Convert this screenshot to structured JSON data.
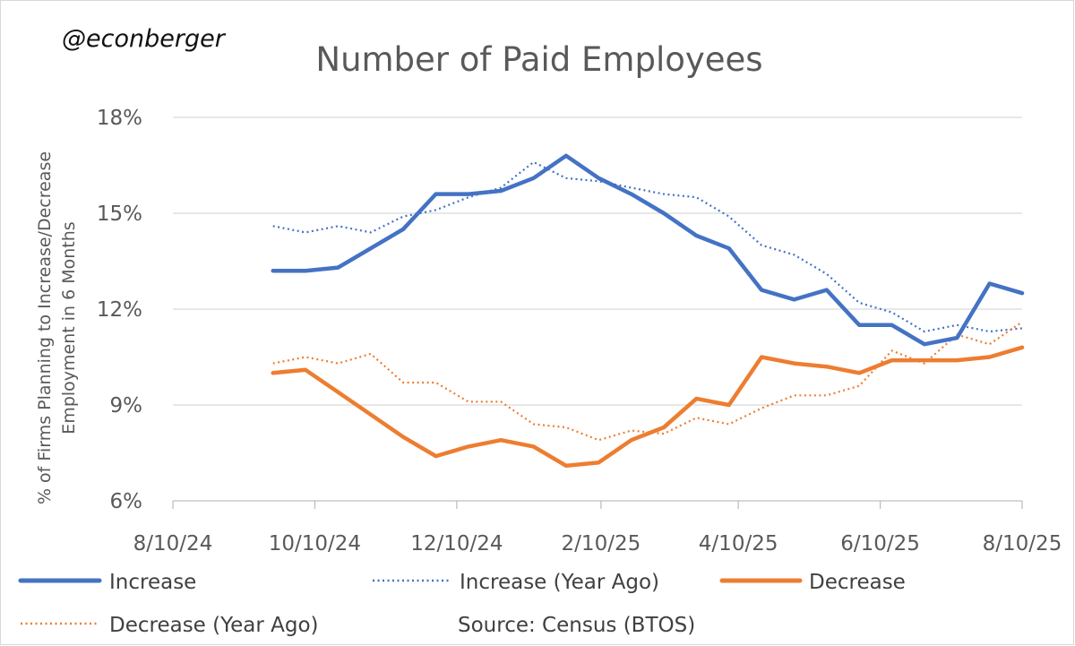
{
  "watermark": "@econberger",
  "source": "Source: Census (BTOS)",
  "colors": {
    "increase": "#4472C4",
    "decrease": "#ED7D31",
    "grid": "#d9d9d9",
    "text": "#595959"
  },
  "chart_data": {
    "type": "line",
    "title": "Number of Paid Employees",
    "ylabel_lines": [
      "% of Firms Planning to Increase/Decrease",
      "Employment in 6 Months"
    ],
    "xlabel": "",
    "x_start": "2024-08-10",
    "x_end": "2025-08-10",
    "x_ticks": [
      "8/10/24",
      "10/10/24",
      "12/10/24",
      "2/10/25",
      "4/10/25",
      "6/10/25",
      "8/10/25"
    ],
    "x_tick_dates": [
      "2024-08-10",
      "2024-10-10",
      "2024-12-10",
      "2025-02-10",
      "2025-04-10",
      "2025-06-10",
      "2025-08-10"
    ],
    "ylim": [
      6,
      18
    ],
    "y_ticks": [
      6,
      9,
      12,
      15,
      18
    ],
    "y_tick_labels": [
      "6%",
      "9%",
      "12%",
      "15%",
      "18%"
    ],
    "grid": true,
    "legend_position": "bottom",
    "series": [
      {
        "name": "Increase",
        "style": "solid",
        "color": "#4472C4",
        "dates": [
          "2024-09-22",
          "2024-10-06",
          "2024-10-20",
          "2024-11-03",
          "2024-11-17",
          "2024-12-01",
          "2024-12-15",
          "2024-12-29",
          "2025-01-12",
          "2025-01-26",
          "2025-02-09",
          "2025-02-23",
          "2025-03-09",
          "2025-03-23",
          "2025-04-06",
          "2025-04-20",
          "2025-05-04",
          "2025-05-18",
          "2025-06-01",
          "2025-06-15",
          "2025-06-29",
          "2025-07-13",
          "2025-07-27",
          "2025-08-10"
        ],
        "values": [
          13.2,
          13.2,
          13.3,
          13.9,
          14.5,
          15.6,
          15.6,
          15.7,
          16.1,
          16.8,
          16.1,
          15.6,
          15.0,
          14.3,
          13.9,
          12.6,
          12.3,
          12.6,
          11.5,
          11.5,
          10.9,
          11.1,
          12.8,
          12.5
        ]
      },
      {
        "name": "Increase (Year Ago)",
        "style": "dotted",
        "color": "#4472C4",
        "dates": [
          "2024-09-22",
          "2024-10-06",
          "2024-10-20",
          "2024-11-03",
          "2024-11-17",
          "2024-12-01",
          "2024-12-15",
          "2024-12-29",
          "2025-01-12",
          "2025-01-26",
          "2025-02-09",
          "2025-02-23",
          "2025-03-09",
          "2025-03-23",
          "2025-04-06",
          "2025-04-20",
          "2025-05-04",
          "2025-05-18",
          "2025-06-01",
          "2025-06-15",
          "2025-06-29",
          "2025-07-13",
          "2025-07-27",
          "2025-08-10"
        ],
        "values": [
          14.6,
          14.4,
          14.6,
          14.4,
          14.9,
          15.1,
          15.5,
          15.8,
          16.6,
          16.1,
          16.0,
          15.8,
          15.6,
          15.5,
          14.9,
          14.0,
          13.7,
          13.1,
          12.2,
          11.9,
          11.3,
          11.5,
          11.3,
          11.4
        ]
      },
      {
        "name": "Decrease",
        "style": "solid",
        "color": "#ED7D31",
        "dates": [
          "2024-09-22",
          "2024-10-06",
          "2024-10-20",
          "2024-11-03",
          "2024-11-17",
          "2024-12-01",
          "2024-12-15",
          "2024-12-29",
          "2025-01-12",
          "2025-01-26",
          "2025-02-09",
          "2025-02-23",
          "2025-03-09",
          "2025-03-23",
          "2025-04-06",
          "2025-04-20",
          "2025-05-04",
          "2025-05-18",
          "2025-06-01",
          "2025-06-15",
          "2025-06-29",
          "2025-07-13",
          "2025-07-27",
          "2025-08-10"
        ],
        "values": [
          10.0,
          10.1,
          9.4,
          8.7,
          8.0,
          7.4,
          7.7,
          7.9,
          7.7,
          7.1,
          7.2,
          7.9,
          8.3,
          9.2,
          9.0,
          10.5,
          10.3,
          10.2,
          10.0,
          10.4,
          10.4,
          10.4,
          10.5,
          10.8
        ]
      },
      {
        "name": "Decrease (Year Ago)",
        "style": "dotted",
        "color": "#ED7D31",
        "dates": [
          "2024-09-22",
          "2024-10-06",
          "2024-10-20",
          "2024-11-03",
          "2024-11-17",
          "2024-12-01",
          "2024-12-15",
          "2024-12-29",
          "2025-01-12",
          "2025-01-26",
          "2025-02-09",
          "2025-02-23",
          "2025-03-09",
          "2025-03-23",
          "2025-04-06",
          "2025-04-20",
          "2025-05-04",
          "2025-05-18",
          "2025-06-01",
          "2025-06-15",
          "2025-06-29",
          "2025-07-13",
          "2025-07-27",
          "2025-08-10"
        ],
        "values": [
          10.3,
          10.5,
          10.3,
          10.6,
          9.7,
          9.7,
          9.1,
          9.1,
          8.4,
          8.3,
          7.9,
          8.2,
          8.1,
          8.6,
          8.4,
          8.9,
          9.3,
          9.3,
          9.6,
          10.7,
          10.3,
          11.2,
          10.9,
          11.6
        ]
      }
    ]
  }
}
